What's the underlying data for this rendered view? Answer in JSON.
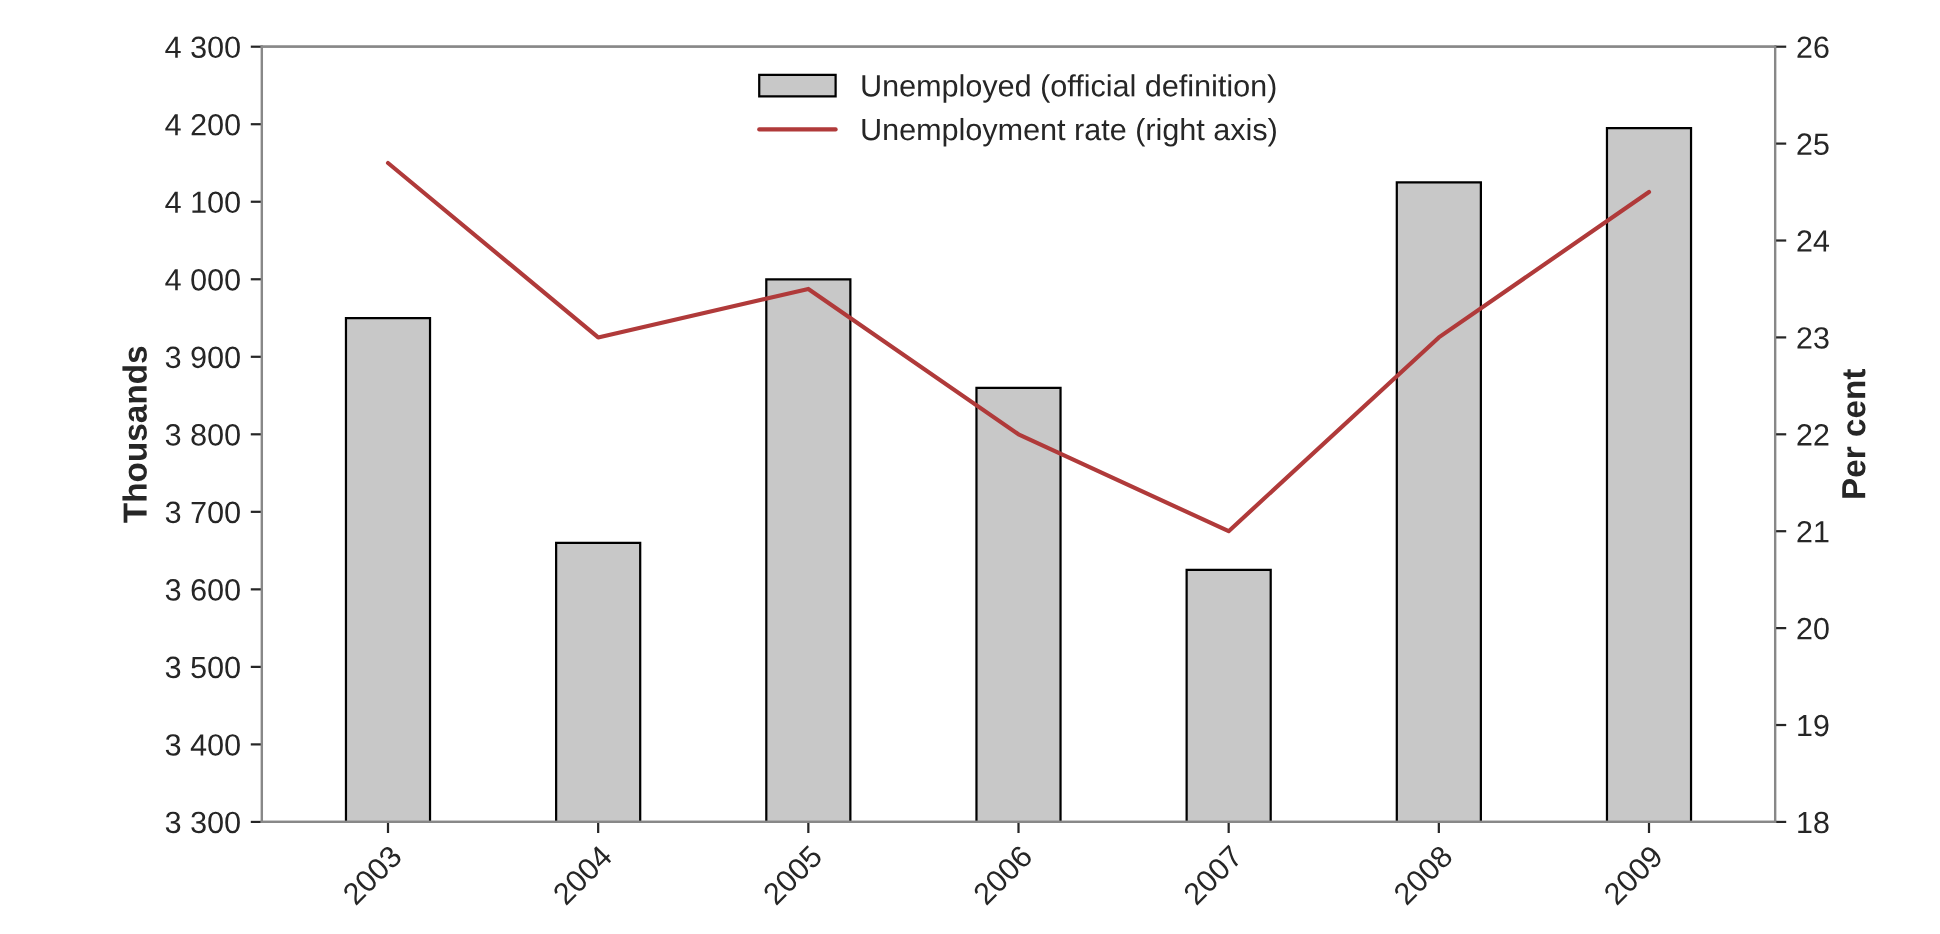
{
  "chart_data": {
    "type": "bar",
    "categories": [
      "2003",
      "2004",
      "2005",
      "2006",
      "2007",
      "2008",
      "2009"
    ],
    "series": [
      {
        "name": "Unemployed (official definition)",
        "type": "bar",
        "color": "#c8c8c8",
        "values": [
          3950,
          3660,
          4000,
          3860,
          3625,
          4125,
          4195
        ]
      },
      {
        "name": "Unemployment rate (right axis)",
        "type": "line",
        "axis": "y2",
        "color": "#b03a3a",
        "values": [
          24.8,
          23.0,
          23.5,
          22.0,
          21.0,
          23.0,
          24.5
        ]
      }
    ],
    "ylabel": "Thousands",
    "y2label": "Per cent",
    "ylim": [
      3300,
      4300
    ],
    "yticks": [
      {
        "value": 3300,
        "label": "3 300"
      },
      {
        "value": 3400,
        "label": "3 400"
      },
      {
        "value": 3500,
        "label": "3 500"
      },
      {
        "value": 3600,
        "label": "3 600"
      },
      {
        "value": 3700,
        "label": "3 700"
      },
      {
        "value": 3800,
        "label": "3 800"
      },
      {
        "value": 3900,
        "label": "3 900"
      },
      {
        "value": 4000,
        "label": "4 000"
      },
      {
        "value": 4100,
        "label": "4 100"
      },
      {
        "value": 4200,
        "label": "4 200"
      },
      {
        "value": 4300,
        "label": "4 300"
      }
    ],
    "y2lim": [
      18,
      26
    ],
    "y2ticks": [
      18,
      19,
      20,
      21,
      22,
      23,
      24,
      25,
      26
    ],
    "legend": "top",
    "grid": false,
    "line_style": "solid",
    "marker": "none"
  }
}
